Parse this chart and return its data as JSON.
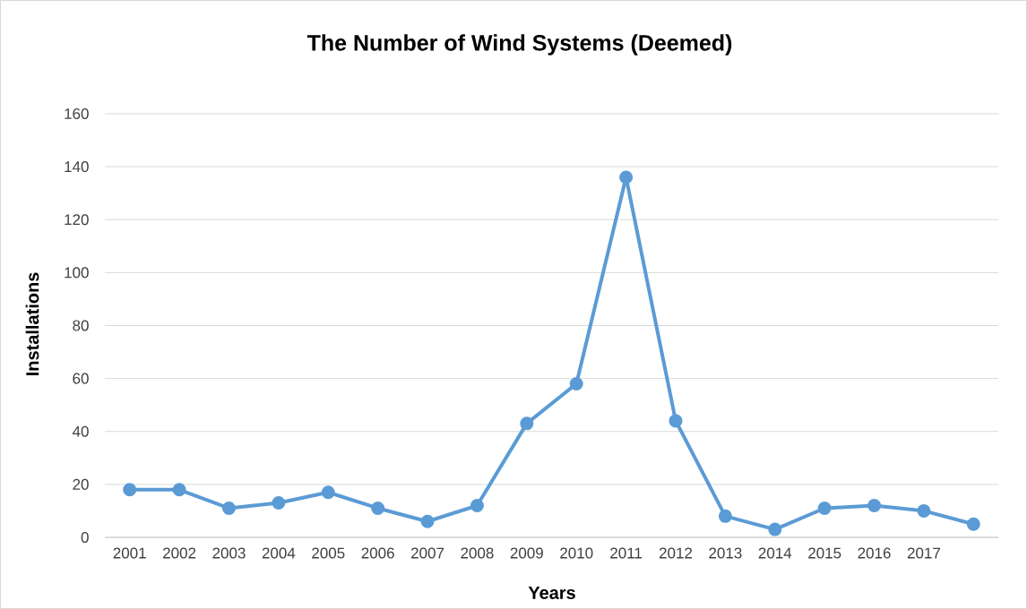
{
  "chart_data": {
    "type": "line",
    "title": "The Number of Wind Systems (Deemed)",
    "xlabel": "Years",
    "ylabel": "Installations",
    "categories": [
      "2001",
      "2002",
      "2003",
      "2004",
      "2005",
      "2006",
      "2007",
      "2008",
      "2009",
      "2010",
      "2011",
      "2012",
      "2013",
      "2014",
      "2015",
      "2016",
      "2017",
      null
    ],
    "series": [
      {
        "color": "#5b9bd5",
        "values": [
          18,
          18,
          11,
          13,
          17,
          11,
          6,
          12,
          43,
          58,
          136,
          44,
          8,
          3,
          11,
          12,
          10,
          5
        ]
      }
    ],
    "ylim": [
      0,
      160
    ],
    "yticks": [
      0,
      20,
      40,
      60,
      80,
      100,
      120,
      140,
      160
    ],
    "grid": "y",
    "marker": "circle",
    "line_style": "solid"
  }
}
